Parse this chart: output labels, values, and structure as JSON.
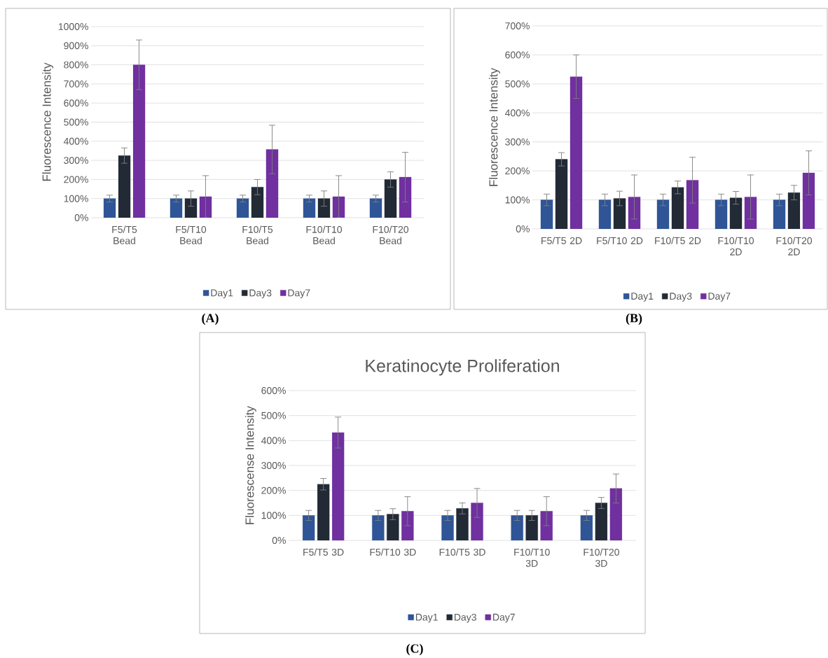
{
  "chart_data": [
    {
      "type": "bar",
      "ylabel": "Fluorescence Intensity",
      "categories": [
        "F5/T5 Bead",
        "F5/T10 Bead",
        "F10/T5 Bead",
        "F10/T10 Bead",
        "F10/T20 Bead"
      ],
      "ylim": [
        0,
        1000
      ],
      "yticks": [
        {
          "value": 0,
          "label": "0%"
        },
        {
          "value": 100,
          "label": "100%"
        },
        {
          "value": 200,
          "label": "200%"
        },
        {
          "value": 300,
          "label": "300%"
        },
        {
          "value": 400,
          "label": "400%"
        },
        {
          "value": 500,
          "label": "500%"
        },
        {
          "value": 600,
          "label": "600%"
        },
        {
          "value": 700,
          "label": "700%"
        },
        {
          "value": 800,
          "label": "800%"
        },
        {
          "value": 900,
          "label": "900%"
        },
        {
          "value": 1000,
          "label": "1000%"
        }
      ],
      "grid": "y",
      "legend": "bottom",
      "annotations": [
        "(A)"
      ],
      "series": [
        {
          "name": "Day1",
          "color": "#2f5597",
          "values": [
            100,
            100,
            100,
            100,
            100
          ],
          "errors": [
            18,
            18,
            18,
            18,
            18
          ]
        },
        {
          "name": "Day3",
          "color": "#222a35",
          "values": [
            325,
            100,
            160,
            100,
            200
          ],
          "errors": [
            40,
            40,
            40,
            40,
            40
          ]
        },
        {
          "name": "Day7",
          "color": "#7030a0",
          "values": [
            800,
            110,
            357,
            110,
            212
          ],
          "errors": [
            130,
            110,
            127,
            110,
            130
          ]
        }
      ]
    },
    {
      "type": "bar",
      "ylabel": "Fluorescence Intensity",
      "categories": [
        "F5/T5 2D",
        "F5/T10 2D",
        "F10/T5 2D",
        "F10/T10 2D",
        "F10/T20 2D"
      ],
      "ylim": [
        0,
        700
      ],
      "yticks": [
        {
          "value": 0,
          "label": "0%"
        },
        {
          "value": 100,
          "label": "100%"
        },
        {
          "value": 200,
          "label": "200%"
        },
        {
          "value": 300,
          "label": "300%"
        },
        {
          "value": 400,
          "label": "400%"
        },
        {
          "value": 500,
          "label": "500%"
        },
        {
          "value": 600,
          "label": "600%"
        },
        {
          "value": 700,
          "label": "700%"
        }
      ],
      "grid": "y",
      "legend": "bottom",
      "annotations": [
        "(B)"
      ],
      "series": [
        {
          "name": "Day1",
          "color": "#2f5597",
          "values": [
            100,
            100,
            100,
            100,
            100
          ],
          "errors": [
            20,
            20,
            20,
            20,
            20
          ]
        },
        {
          "name": "Day3",
          "color": "#222a35",
          "values": [
            240,
            105,
            143,
            107,
            125
          ],
          "errors": [
            23,
            25,
            22,
            22,
            25
          ]
        },
        {
          "name": "Day7",
          "color": "#7030a0",
          "values": [
            525,
            110,
            168,
            110,
            193
          ],
          "errors": [
            75,
            76,
            79,
            76,
            76
          ]
        }
      ]
    },
    {
      "type": "bar",
      "title": "Keratinocyte Proliferation",
      "ylabel": "Fluorescense Intensity",
      "categories": [
        "F5/T5 3D",
        "F5/T10 3D",
        "F10/T5 3D",
        "F10/T10 3D",
        "F10/T20 3D"
      ],
      "ylim": [
        0,
        600
      ],
      "yticks": [
        {
          "value": 0,
          "label": "0%"
        },
        {
          "value": 100,
          "label": "100%"
        },
        {
          "value": 200,
          "label": "200%"
        },
        {
          "value": 300,
          "label": "300%"
        },
        {
          "value": 400,
          "label": "400%"
        },
        {
          "value": 500,
          "label": "500%"
        },
        {
          "value": 600,
          "label": "600%"
        }
      ],
      "grid": "y",
      "legend": "bottom",
      "annotations": [
        "(C)"
      ],
      "series": [
        {
          "name": "Day1",
          "color": "#2f5597",
          "values": [
            100,
            100,
            100,
            100,
            100
          ],
          "errors": [
            20,
            20,
            20,
            20,
            20
          ]
        },
        {
          "name": "Day3",
          "color": "#222a35",
          "values": [
            225,
            105,
            128,
            100,
            150
          ],
          "errors": [
            23,
            22,
            22,
            20,
            22
          ]
        },
        {
          "name": "Day7",
          "color": "#7030a0",
          "values": [
            432,
            117,
            150,
            117,
            208
          ],
          "errors": [
            62,
            58,
            58,
            58,
            58
          ]
        }
      ]
    }
  ]
}
